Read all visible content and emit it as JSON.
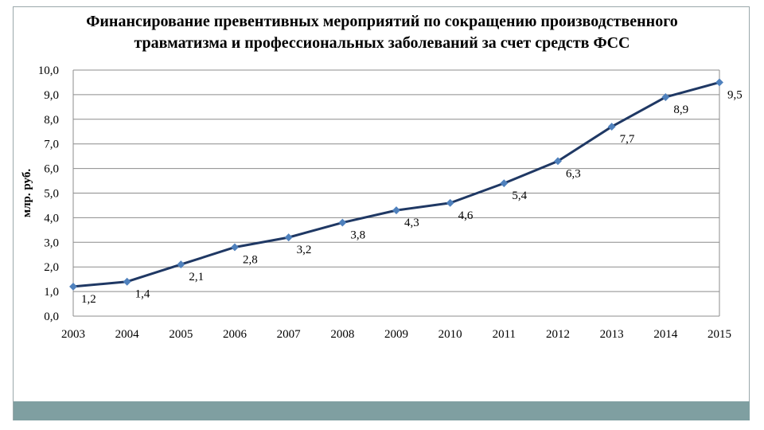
{
  "header": {
    "title_line1": "Финансирование превентивных мероприятий по сокращению производственного",
    "title_line2": "травматизма и  профессиональных заболеваний  за счет средств ФСС"
  },
  "chart_data": {
    "type": "line",
    "title": "Финансирование превентивных мероприятий по сокращению производственного травматизма и  профессиональных заболеваний  за счет средств ФСС",
    "xlabel": "",
    "ylabel": "млр. руб.",
    "categories": [
      "2003",
      "2004",
      "2005",
      "2006",
      "2007",
      "2008",
      "2009",
      "2010",
      "2011",
      "2012",
      "2013",
      "2014",
      "2015"
    ],
    "series": [
      {
        "values": [
          1.2,
          1.4,
          2.1,
          2.8,
          3.2,
          3.8,
          4.3,
          4.6,
          5.4,
          6.3,
          7.7,
          8.9,
          9.5
        ]
      }
    ],
    "data_labels": [
      "1,2",
      "1,4",
      "2,1",
      "2,8",
      "3,2",
      "3,8",
      "4,3",
      "4,6",
      "5,4",
      "6,3",
      "7,7",
      "8,9",
      "9,5"
    ],
    "y_tick_labels": [
      "0,0",
      "1,0",
      "2,0",
      "3,0",
      "4,0",
      "5,0",
      "6,0",
      "7,0",
      "8,0",
      "9,0",
      "10,0"
    ],
    "ylim": [
      0,
      10
    ],
    "grid": true,
    "legend": "none",
    "colors": {
      "line": "#1f3864",
      "marker": "#4f81bd",
      "grid": "#8c8c8c"
    }
  }
}
